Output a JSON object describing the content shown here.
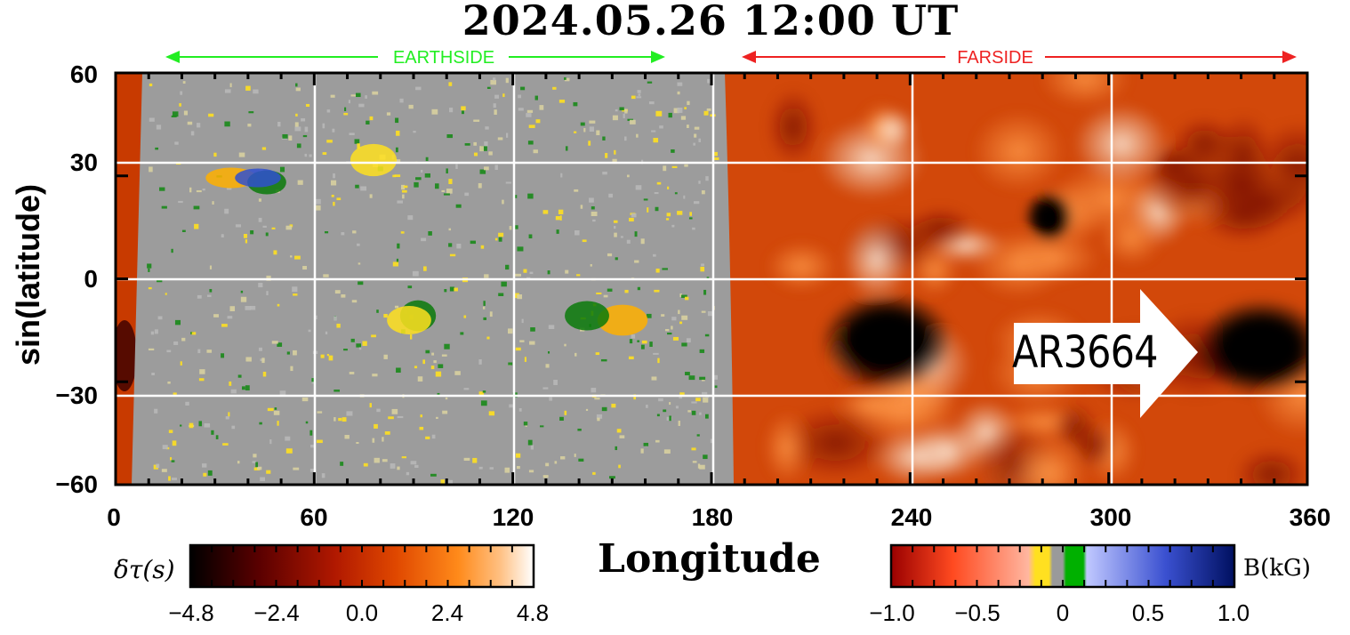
{
  "chart_data": {
    "type": "heatmap",
    "title": "2024.05.26  12:00 UT",
    "xlabel": "Longitude",
    "ylabel": "sin(latitude)",
    "xlim": [
      0,
      360
    ],
    "ylim": [
      -60,
      60
    ],
    "x_ticks": [
      "0",
      "60",
      "120",
      "180",
      "240",
      "300",
      "360"
    ],
    "y_ticks": [
      "60",
      "30",
      "0",
      "−30",
      "−60"
    ],
    "grid": true,
    "regions": [
      {
        "label": "EARTHSIDE",
        "lon_range": [
          15,
          165
        ],
        "color": "#22ee22",
        "content": "magnetogram"
      },
      {
        "label": "FARSIDE",
        "lon_range": [
          190,
          355
        ],
        "color": "#ee2222",
        "content": "helioseismic travel-time map"
      }
    ],
    "annotation": {
      "text": "AR3664",
      "lon": 315,
      "lat": -20,
      "style": "arrow-right"
    },
    "farside_dark_spots": [
      {
        "lon": 233,
        "lat": -18
      },
      {
        "lon": 346,
        "lat": -20
      },
      {
        "lon": 282,
        "lat": 18
      }
    ],
    "colorbar_left": {
      "label": "δτ(s)",
      "range": [
        -4.8,
        4.8
      ],
      "ticks": [
        "−4.8",
        "−2.4",
        "0.0",
        "2.4",
        "4.8"
      ],
      "colors": [
        "#000000",
        "#5a0000",
        "#b01800",
        "#e04800",
        "#ff8a1a",
        "#ffbf80",
        "#ffffff"
      ]
    },
    "colorbar_right": {
      "label": "B(kG)",
      "range": [
        -1.0,
        1.0
      ],
      "ticks": [
        "−1.0",
        "−0.5",
        "0",
        "0.5",
        "1.0"
      ],
      "colors": [
        "#9a0000",
        "#ff4a20",
        "#ffb6a0",
        "#ffe020",
        "#9a9a9a",
        "#00b000",
        "#c0c8ff",
        "#3a50d0",
        "#001060"
      ]
    }
  }
}
